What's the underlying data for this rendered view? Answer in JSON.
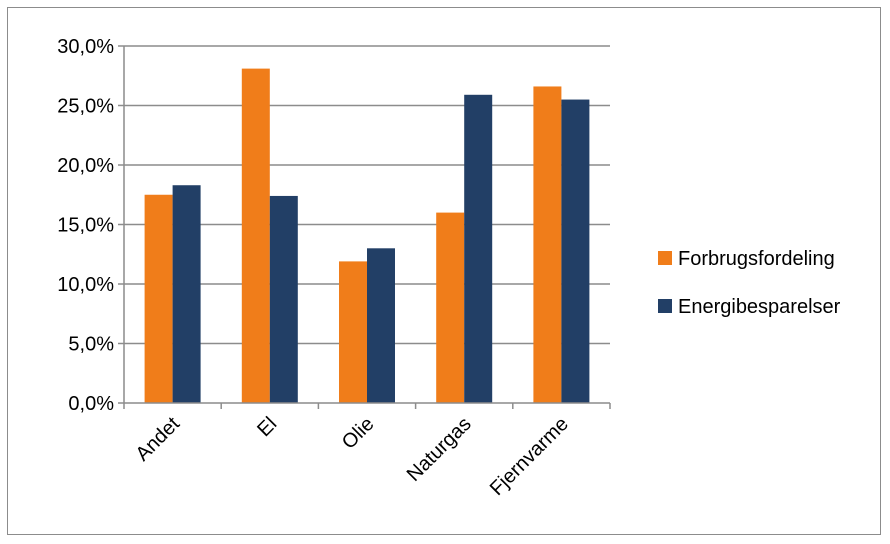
{
  "chart_data": {
    "type": "bar",
    "title": "",
    "xlabel": "",
    "ylabel": "",
    "categories": [
      "Andet",
      "El",
      "Olie",
      "Naturgas",
      "Fjernvarme"
    ],
    "series": [
      {
        "name": "Forbrugsfordeling",
        "color": "#f07d1a",
        "values": [
          17.5,
          28.1,
          11.9,
          16.0,
          26.6
        ]
      },
      {
        "name": "Energibesparelser",
        "color": "#223f66",
        "values": [
          18.3,
          17.4,
          13.0,
          25.9,
          25.5
        ]
      }
    ],
    "ylim": [
      0,
      30
    ],
    "yticks": [
      0,
      5,
      10,
      15,
      20,
      25,
      30
    ],
    "ytick_labels": [
      "0,0%",
      "5,0%",
      "10,0%",
      "15,0%",
      "20,0%",
      "25,0%",
      "30,0%"
    ],
    "grid": true,
    "legend_position": "right",
    "colors": {
      "gridline": "#8c8c8c",
      "frame": "#8c8c8c"
    }
  }
}
